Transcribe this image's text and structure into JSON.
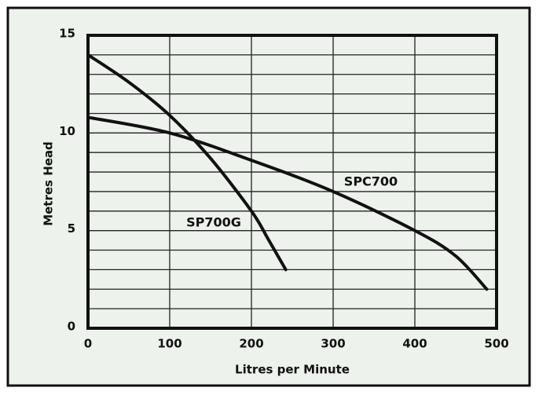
{
  "chart_data": {
    "type": "line",
    "xlabel": "Litres per Minute",
    "ylabel": "Metres Head",
    "series": [
      {
        "name": "SP700G",
        "color": "#111111",
        "x": [
          0,
          50,
          100,
          150,
          200,
          220,
          242
        ],
        "values": [
          14,
          12.6,
          10.9,
          8.7,
          6,
          4.6,
          3
        ]
      },
      {
        "name": "SPC700",
        "color": "#111111",
        "x": [
          0,
          100,
          200,
          300,
          400,
          450,
          488
        ],
        "values": [
          10.8,
          10,
          8.6,
          7,
          5,
          3.7,
          2
        ]
      }
    ],
    "xlim": [
      0,
      500
    ],
    "xticks": [
      0,
      100,
      200,
      300,
      400,
      500
    ],
    "ylim": [
      0,
      15
    ],
    "yticks": [
      0,
      5,
      10,
      15
    ],
    "ygrid": [
      1,
      2,
      3,
      4,
      6,
      7,
      8,
      9,
      11,
      12,
      13,
      14
    ],
    "grid": true
  }
}
